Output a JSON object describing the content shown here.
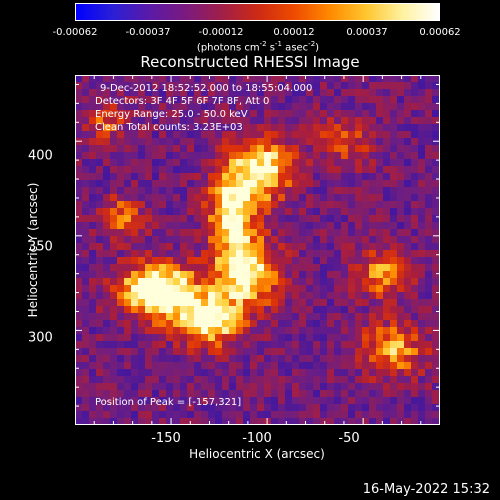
{
  "title": "Reconstructed RHESSI Image",
  "colorbar": {
    "ticks": [
      "-0.00062",
      "-0.00037",
      "-0.00012",
      "0.00012",
      "0.00037",
      "0.00062"
    ],
    "units_main": "(photons cm",
    "units_exp1": "-2",
    "units_s": " s",
    "units_exp2": "-1",
    "units_asec": " asec",
    "units_exp3": "-2",
    "units_close": ")",
    "colors": [
      "#0000ff",
      "#2a1fd6",
      "#5a1aa8",
      "#7a1a80",
      "#a01f4a",
      "#cc2a14",
      "#ee4a00",
      "#ff8a00",
      "#ffc630",
      "#fff2a0",
      "#ffffff"
    ]
  },
  "annotations": {
    "time_range": "9-Dec-2012 18:52:52.000 to 18:55:04.000",
    "detectors": "Detectors: 3F 4F 5F 6F 7F 8F, Att 0",
    "energy": "Energy Range: 25.0 - 50.0 keV",
    "clean": "Clean     Total counts: 3.23E+03",
    "peak": "Position of Peak = [-157,321]"
  },
  "axes": {
    "xlabel": "Heliocentric X (arcsec)",
    "ylabel": "Heliocentric Y (arcsec)",
    "xticks": [
      "-150",
      "-100",
      "-50"
    ],
    "yticks": [
      "400",
      "350",
      "300"
    ]
  },
  "timestamp": "16-May-2022 15:32",
  "chart_data": {
    "type": "heatmap",
    "title": "Reconstructed RHESSI Image",
    "xlabel": "Heliocentric X (arcsec)",
    "ylabel": "Heliocentric Y (arcsec)",
    "xlim": [
      -200,
      -10
    ],
    "ylim": [
      250,
      435
    ],
    "colorbar_range": [
      -0.00062,
      0.00062
    ],
    "peak": [
      -157,
      321
    ],
    "sources": [
      {
        "x": -157,
        "y": 321,
        "sx": 14,
        "sy": 10,
        "amp": 1.0
      },
      {
        "x": -130,
        "y": 305,
        "sx": 12,
        "sy": 10,
        "amp": 0.8
      },
      {
        "x": -110,
        "y": 330,
        "sx": 12,
        "sy": 12,
        "amp": 0.75
      },
      {
        "x": -118,
        "y": 365,
        "sx": 9,
        "sy": 18,
        "amp": 0.8
      },
      {
        "x": -100,
        "y": 385,
        "sx": 10,
        "sy": 12,
        "amp": 0.7
      },
      {
        "x": -175,
        "y": 360,
        "sx": 8,
        "sy": 8,
        "amp": 0.45
      },
      {
        "x": -40,
        "y": 330,
        "sx": 10,
        "sy": 9,
        "amp": 0.5
      },
      {
        "x": -35,
        "y": 290,
        "sx": 12,
        "sy": 10,
        "amp": 0.55
      },
      {
        "x": -60,
        "y": 400,
        "sx": 10,
        "sy": 9,
        "amp": 0.4
      },
      {
        "x": -185,
        "y": 410,
        "sx": 9,
        "sy": 8,
        "amp": 0.35
      }
    ]
  }
}
